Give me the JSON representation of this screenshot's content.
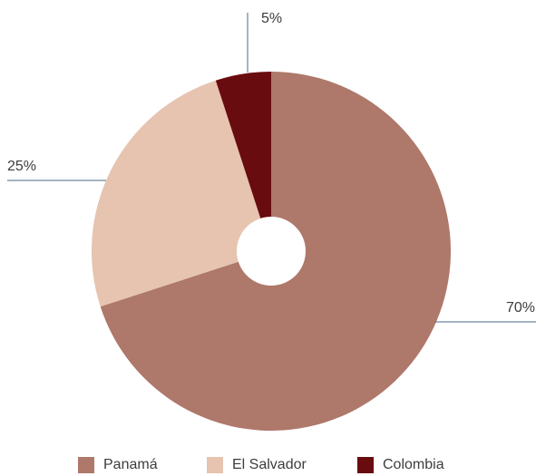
{
  "chart_data": {
    "type": "pie",
    "categories": [
      "Panamá",
      "El Salvador",
      "Colombia"
    ],
    "values": [
      70,
      25,
      5
    ],
    "data_labels": [
      "70%",
      "25%",
      "5%"
    ],
    "colors": [
      "#ae786b",
      "#e6c4b0",
      "#690c0f"
    ],
    "hole": true,
    "leader_line_color": "#4a6a8a",
    "legend_placement": "bottom"
  }
}
